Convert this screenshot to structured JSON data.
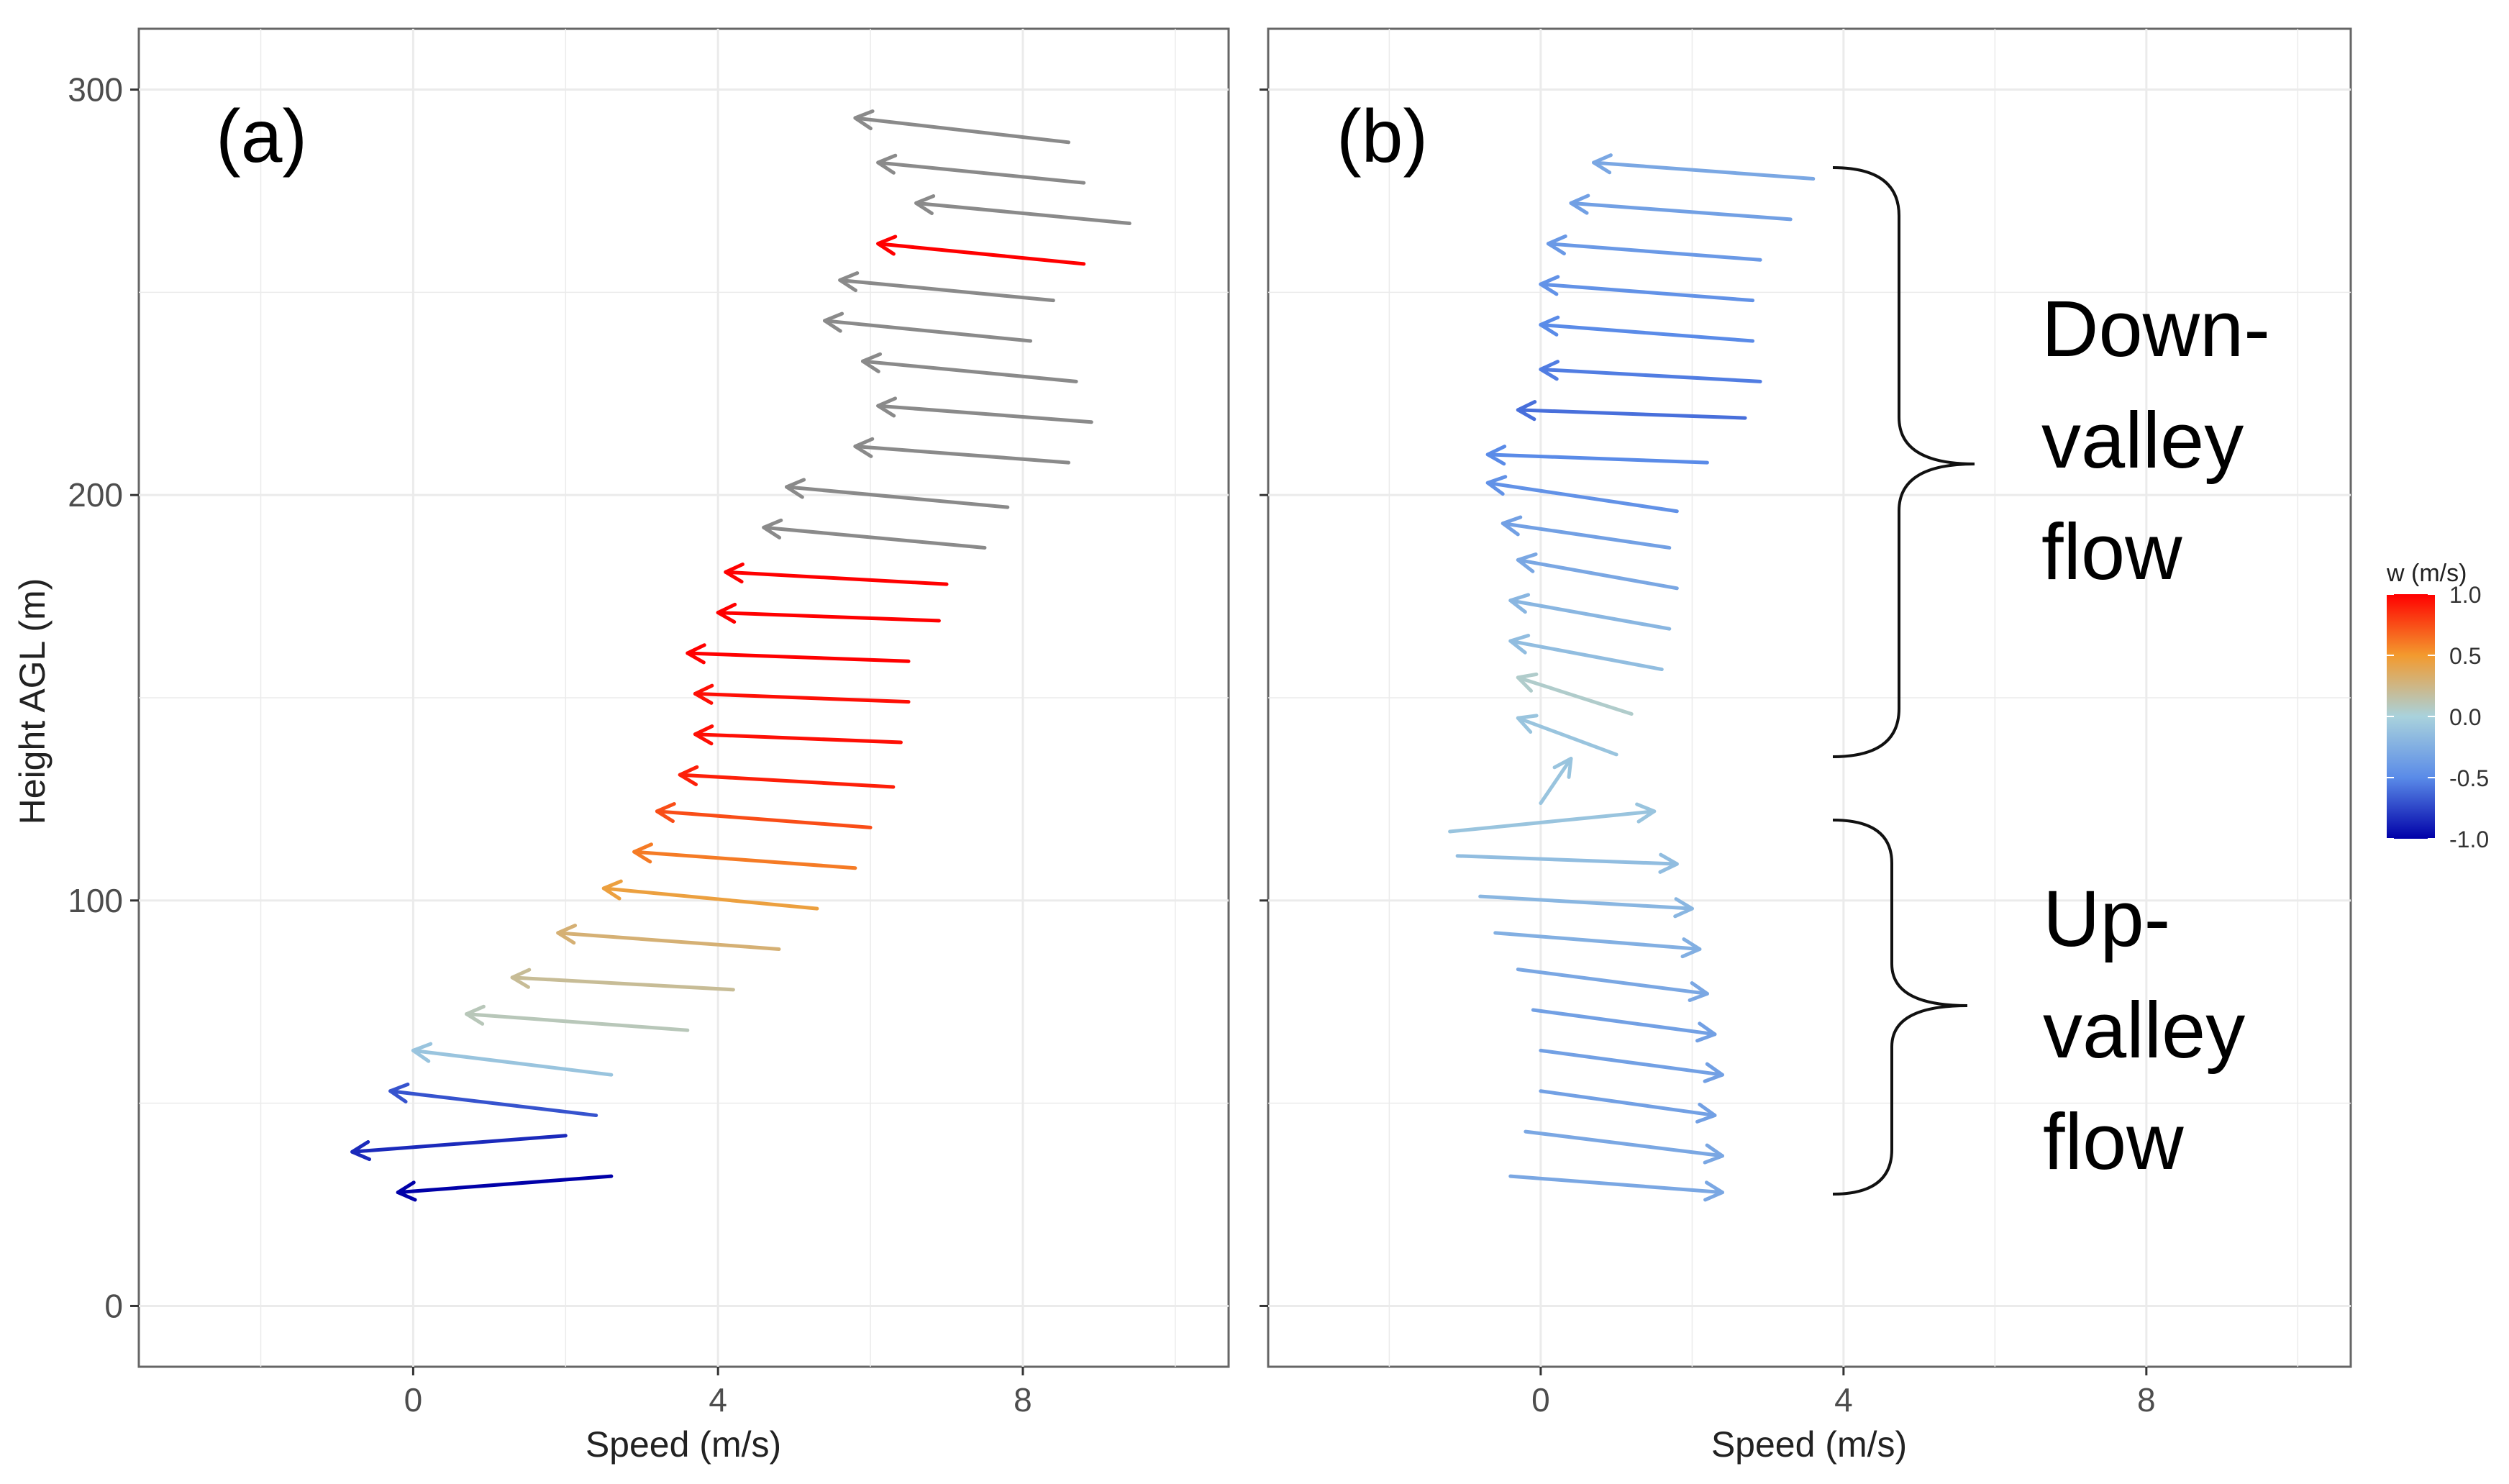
{
  "chart_data": [
    {
      "type": "vector",
      "panel_label": "(a)",
      "xlabel": "Speed (m/s)",
      "ylabel": "Height AGL (m)",
      "xlim": [
        -3.6,
        10.7
      ],
      "ylim": [
        -15,
        315
      ],
      "xticks": [
        0,
        4,
        8
      ],
      "yticks": [
        0,
        100,
        200,
        300
      ],
      "grid": true,
      "color_legend": "none",
      "arrows": [
        {
          "x0": 8.6,
          "y0": 287,
          "x1": 5.8,
          "y1": 293,
          "w": null
        },
        {
          "x0": 8.8,
          "y0": 277,
          "x1": 6.1,
          "y1": 282,
          "w": null
        },
        {
          "x0": 9.4,
          "y0": 267,
          "x1": 6.6,
          "y1": 272,
          "w": null
        },
        {
          "x0": 8.8,
          "y0": 257,
          "x1": 6.1,
          "y1": 262,
          "w": 1.0
        },
        {
          "x0": 8.4,
          "y0": 248,
          "x1": 5.6,
          "y1": 253,
          "w": null
        },
        {
          "x0": 8.1,
          "y0": 238,
          "x1": 5.4,
          "y1": 243,
          "w": null
        },
        {
          "x0": 8.7,
          "y0": 228,
          "x1": 5.9,
          "y1": 233,
          "w": null
        },
        {
          "x0": 8.9,
          "y0": 218,
          "x1": 6.1,
          "y1": 222,
          "w": null
        },
        {
          "x0": 8.6,
          "y0": 208,
          "x1": 5.8,
          "y1": 212,
          "w": null
        },
        {
          "x0": 7.8,
          "y0": 197,
          "x1": 4.9,
          "y1": 202,
          "w": null
        },
        {
          "x0": 7.5,
          "y0": 187,
          "x1": 4.6,
          "y1": 192,
          "w": null
        },
        {
          "x0": 7.0,
          "y0": 178,
          "x1": 4.1,
          "y1": 181,
          "w": 1.0
        },
        {
          "x0": 6.9,
          "y0": 169,
          "x1": 4.0,
          "y1": 171,
          "w": 1.0
        },
        {
          "x0": 6.5,
          "y0": 159,
          "x1": 3.6,
          "y1": 161,
          "w": 1.0
        },
        {
          "x0": 6.5,
          "y0": 149,
          "x1": 3.7,
          "y1": 151,
          "w": 0.95
        },
        {
          "x0": 6.4,
          "y0": 139,
          "x1": 3.7,
          "y1": 141,
          "w": 0.95
        },
        {
          "x0": 6.3,
          "y0": 128,
          "x1": 3.5,
          "y1": 131,
          "w": 0.9
        },
        {
          "x0": 6.0,
          "y0": 118,
          "x1": 3.2,
          "y1": 122,
          "w": 0.75
        },
        {
          "x0": 5.8,
          "y0": 108,
          "x1": 2.9,
          "y1": 112,
          "w": 0.6
        },
        {
          "x0": 5.3,
          "y0": 98,
          "x1": 2.5,
          "y1": 103,
          "w": 0.45
        },
        {
          "x0": 4.8,
          "y0": 88,
          "x1": 1.9,
          "y1": 92,
          "w": 0.3
        },
        {
          "x0": 4.2,
          "y0": 78,
          "x1": 1.3,
          "y1": 81,
          "w": 0.2
        },
        {
          "x0": 3.6,
          "y0": 68,
          "x1": 0.7,
          "y1": 72,
          "w": 0.1
        },
        {
          "x0": 2.6,
          "y0": 57,
          "x1": 0.0,
          "y1": 63,
          "w": -0.1
        },
        {
          "x0": 2.4,
          "y0": 47,
          "x1": -0.3,
          "y1": 53,
          "w": -0.7
        },
        {
          "x0": 2.0,
          "y0": 42,
          "x1": -0.8,
          "y1": 38,
          "w": -0.85
        },
        {
          "x0": 2.6,
          "y0": 32,
          "x1": -0.2,
          "y1": 28,
          "w": -1.0
        }
      ]
    },
    {
      "type": "vector",
      "panel_label": "(b)",
      "xlabel": "Speed (m/s)",
      "ylabel": "",
      "xlim": [
        -3.6,
        10.7
      ],
      "ylim": [
        -15,
        315
      ],
      "xticks": [
        0,
        4,
        8
      ],
      "yticks": [
        0,
        100,
        200,
        300
      ],
      "grid": true,
      "color_legend": "right",
      "arrows": [
        {
          "x0": 3.6,
          "y0": 278,
          "x1": 0.7,
          "y1": 282,
          "w": -0.3
        },
        {
          "x0": 3.3,
          "y0": 268,
          "x1": 0.4,
          "y1": 272,
          "w": -0.35
        },
        {
          "x0": 2.9,
          "y0": 258,
          "x1": 0.1,
          "y1": 262,
          "w": -0.4
        },
        {
          "x0": 2.8,
          "y0": 248,
          "x1": 0.0,
          "y1": 252,
          "w": -0.45
        },
        {
          "x0": 2.8,
          "y0": 238,
          "x1": 0.0,
          "y1": 242,
          "w": -0.5
        },
        {
          "x0": 2.9,
          "y0": 228,
          "x1": 0.0,
          "y1": 231,
          "w": -0.55
        },
        {
          "x0": 2.7,
          "y0": 219,
          "x1": -0.3,
          "y1": 221,
          "w": -0.6
        },
        {
          "x0": 2.2,
          "y0": 208,
          "x1": -0.7,
          "y1": 210,
          "w": -0.5
        },
        {
          "x0": 1.8,
          "y0": 196,
          "x1": -0.7,
          "y1": 203,
          "w": -0.45
        },
        {
          "x0": 1.7,
          "y0": 187,
          "x1": -0.5,
          "y1": 193,
          "w": -0.35
        },
        {
          "x0": 1.8,
          "y0": 177,
          "x1": -0.3,
          "y1": 184,
          "w": -0.3
        },
        {
          "x0": 1.7,
          "y0": 167,
          "x1": -0.4,
          "y1": 174,
          "w": -0.2
        },
        {
          "x0": 1.6,
          "y0": 157,
          "x1": -0.4,
          "y1": 164,
          "w": -0.15
        },
        {
          "x0": 1.2,
          "y0": 146,
          "x1": -0.3,
          "y1": 155,
          "w": 0.05
        },
        {
          "x0": 1.0,
          "y0": 136,
          "x1": -0.3,
          "y1": 145,
          "w": -0.1
        },
        {
          "x0": 0.0,
          "y0": 124,
          "x1": 0.4,
          "y1": 135,
          "w": -0.1
        },
        {
          "x0": -1.2,
          "y0": 117,
          "x1": 1.5,
          "y1": 122,
          "w": -0.1
        },
        {
          "x0": -1.1,
          "y0": 111,
          "x1": 1.8,
          "y1": 109,
          "w": -0.15
        },
        {
          "x0": -0.8,
          "y0": 101,
          "x1": 2.0,
          "y1": 98,
          "w": -0.2
        },
        {
          "x0": -0.6,
          "y0": 92,
          "x1": 2.1,
          "y1": 88,
          "w": -0.25
        },
        {
          "x0": -0.3,
          "y0": 83,
          "x1": 2.2,
          "y1": 77,
          "w": -0.3
        },
        {
          "x0": -0.1,
          "y0": 73,
          "x1": 2.3,
          "y1": 67,
          "w": -0.35
        },
        {
          "x0": 0.0,
          "y0": 63,
          "x1": 2.4,
          "y1": 57,
          "w": -0.35
        },
        {
          "x0": 0.0,
          "y0": 53,
          "x1": 2.3,
          "y1": 47,
          "w": -0.35
        },
        {
          "x0": -0.2,
          "y0": 43,
          "x1": 2.4,
          "y1": 37,
          "w": -0.3
        },
        {
          "x0": -0.4,
          "y0": 32,
          "x1": 2.4,
          "y1": 28,
          "w": -0.3
        }
      ],
      "annotations": [
        {
          "lines": [
            "Down-",
            "valley",
            "flow"
          ],
          "y_range": [
            136,
            280
          ]
        },
        {
          "lines": [
            "Up-",
            "valley",
            "flow"
          ],
          "y_range": [
            28,
            120
          ]
        }
      ],
      "legend": {
        "title": "w (m/s)",
        "ticks": [
          "1.0",
          "0.5",
          "0.0",
          "-0.5",
          "-1.0"
        ],
        "range": [
          -1.0,
          1.0
        ]
      }
    }
  ],
  "colors": {
    "na_arrow": "#8a8a8a",
    "scale_low": "#0000a8",
    "scale_mid_low": "#5a8be8",
    "scale_mid": "#a9d2dc",
    "scale_mid_high": "#f39a2e",
    "scale_high": "#ff0000",
    "panel_border": "#666666",
    "grid": "#ebebeb"
  }
}
